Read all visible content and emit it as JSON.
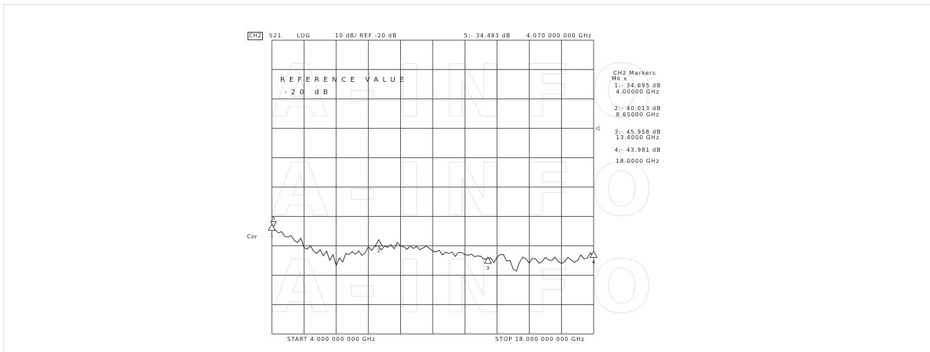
{
  "header": {
    "channel": "CH2",
    "param": "S21",
    "format": "LOG",
    "scale": "10 dB/ REF -20 dB",
    "active_marker": "5:- 34.483 dB",
    "active_marker_freq": "4.070 000 000 GHz"
  },
  "reference": {
    "title": "REFERENCE VALUE",
    "value": "-20 dB"
  },
  "watermark": "A-INFO",
  "side_label": "Cor",
  "footer": {
    "start": "START 4.000 000 000 GHz",
    "stop": "STOP 18.000 000 000 GHz"
  },
  "marker_panel": {
    "title": "CH2 Markers",
    "mode": "Mk x",
    "entries": [
      {
        "value": "1:- 34.695 dB",
        "freq": "4.00000 GHz"
      },
      {
        "value": "2:- 40.013 dB",
        "freq": "8.65000 GHz"
      },
      {
        "value": "3:- 45.958 dB",
        "freq": "13.4000 GHz"
      },
      {
        "value": "4:- 43.981 dB",
        "freq": "18.0000 GHz"
      }
    ]
  },
  "colors": {
    "trace": "#222222",
    "grid": "#444444",
    "watermark": "#e3e3e3"
  },
  "chart_data": {
    "type": "line",
    "grid": true,
    "xlim": [
      4,
      18
    ],
    "ylim": [
      -70,
      30
    ],
    "x_divisions": 10,
    "y_divisions": 10,
    "series": [
      {
        "x": [
          4.0,
          4.14,
          4.28,
          4.42,
          4.56,
          4.7,
          4.84,
          4.98,
          5.12,
          5.26,
          5.4,
          5.54,
          5.68,
          5.82,
          5.96,
          6.1,
          6.24,
          6.38,
          6.52,
          6.66,
          6.8,
          6.94,
          7.08,
          7.22,
          7.36,
          7.5,
          7.64,
          7.78,
          7.92,
          8.06,
          8.2,
          8.34,
          8.48,
          8.62,
          8.76,
          8.9,
          9.04,
          9.18,
          9.32,
          9.46,
          9.6,
          9.74,
          9.88,
          10.02,
          10.16,
          10.3,
          10.44,
          10.58,
          10.72,
          10.86,
          11.0,
          11.14,
          11.28,
          11.42,
          11.56,
          11.7,
          11.84,
          11.98,
          12.12,
          12.26,
          12.4,
          12.54,
          12.68,
          12.82,
          12.96,
          13.1,
          13.24,
          13.38,
          13.52,
          13.66,
          13.8,
          13.94,
          14.08,
          14.22,
          14.36,
          14.5,
          14.64,
          14.78,
          14.92,
          15.06,
          15.2,
          15.34,
          15.48,
          15.62,
          15.76,
          15.9,
          16.04,
          16.18,
          16.32,
          16.46,
          16.6,
          16.74,
          16.88,
          17.02,
          17.16,
          17.3,
          17.44,
          17.58,
          17.72,
          17.86,
          18.0
        ],
        "y": [
          -34.7,
          -34.5,
          -35.6,
          -35.2,
          -36.8,
          -37.0,
          -36.5,
          -38.2,
          -38.9,
          -37.4,
          -40.6,
          -41.1,
          -40.0,
          -41.9,
          -42.6,
          -41.3,
          -43.4,
          -41.8,
          -44.9,
          -43.0,
          -46.7,
          -44.1,
          -45.5,
          -42.6,
          -42.9,
          -41.9,
          -42.9,
          -41.7,
          -43.3,
          -42.3,
          -40.3,
          -41.5,
          -40.2,
          -40.0,
          -41.4,
          -40.1,
          -40.5,
          -39.6,
          -41.0,
          -38.9,
          -40.1,
          -40.3,
          -41.2,
          -40.0,
          -40.9,
          -40.2,
          -41.3,
          -40.7,
          -40.1,
          -40.9,
          -41.8,
          -42.0,
          -41.5,
          -43.1,
          -42.2,
          -42.6,
          -42.1,
          -43.6,
          -42.2,
          -42.3,
          -43.0,
          -43.2,
          -42.8,
          -43.7,
          -43.4,
          -43.6,
          -44.6,
          -44.2,
          -44.1,
          -45.7,
          -43.8,
          -43.0,
          -43.0,
          -45.2,
          -44.9,
          -48.0,
          -48.6,
          -45.5,
          -43.8,
          -44.5,
          -45.9,
          -44.2,
          -44.5,
          -45.9,
          -45.3,
          -43.9,
          -44.8,
          -45.0,
          -43.8,
          -45.4,
          -46.0,
          -45.4,
          -43.9,
          -44.8,
          -45.6,
          -45.0,
          -43.1,
          -44.4,
          -44.2,
          -42.3,
          -44.0
        ]
      }
    ],
    "markers": [
      {
        "id": "1",
        "x": 4.0,
        "y": -34.695
      },
      {
        "id": "5",
        "x": 4.07,
        "y": -34.483
      },
      {
        "id": "2",
        "x": 8.65,
        "y": -40.013
      },
      {
        "id": "3",
        "x": 13.4,
        "y": -45.958
      },
      {
        "id": "4",
        "x": 18.0,
        "y": -43.981
      }
    ]
  }
}
